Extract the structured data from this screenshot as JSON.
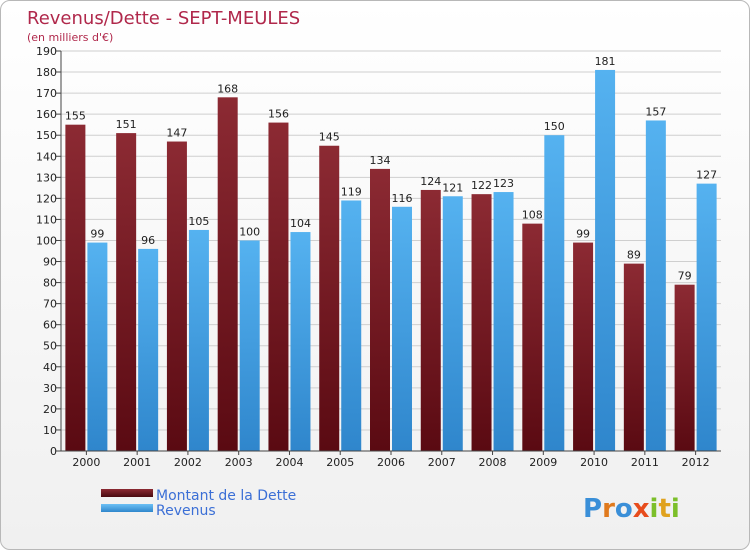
{
  "chart_data": {
    "type": "bar",
    "title": "Revenus/Dette - SEPT-MEULES",
    "subtitle": "(en milliers d'€)",
    "categories": [
      "2000",
      "2001",
      "2002",
      "2003",
      "2004",
      "2005",
      "2006",
      "2007",
      "2008",
      "2009",
      "2010",
      "2011",
      "2012"
    ],
    "series": [
      {
        "name": "Montant de la Dette",
        "values": [
          155,
          151,
          147,
          168,
          156,
          145,
          134,
          124,
          122,
          108,
          99,
          89,
          79
        ],
        "color": "#7a1f24"
      },
      {
        "name": "Revenus",
        "values": [
          99,
          96,
          105,
          100,
          104,
          119,
          116,
          121,
          123,
          150,
          181,
          157,
          127
        ],
        "color": "#4aa8ea"
      }
    ],
    "ylim": [
      0,
      190
    ],
    "yticks": [
      0,
      10,
      20,
      30,
      40,
      50,
      60,
      70,
      80,
      90,
      100,
      110,
      120,
      130,
      140,
      150,
      160,
      170,
      180,
      190
    ],
    "grid": true,
    "legend": "bottom-left"
  },
  "logo": {
    "letters": [
      "P",
      "r",
      "o",
      "x",
      "i",
      "t",
      "i"
    ],
    "colors": [
      "#3a8fd8",
      "#e07a1e",
      "#3a8fd8",
      "#e74c1c",
      "#7cbf2a",
      "#e0a21e",
      "#7cbf2a"
    ]
  }
}
